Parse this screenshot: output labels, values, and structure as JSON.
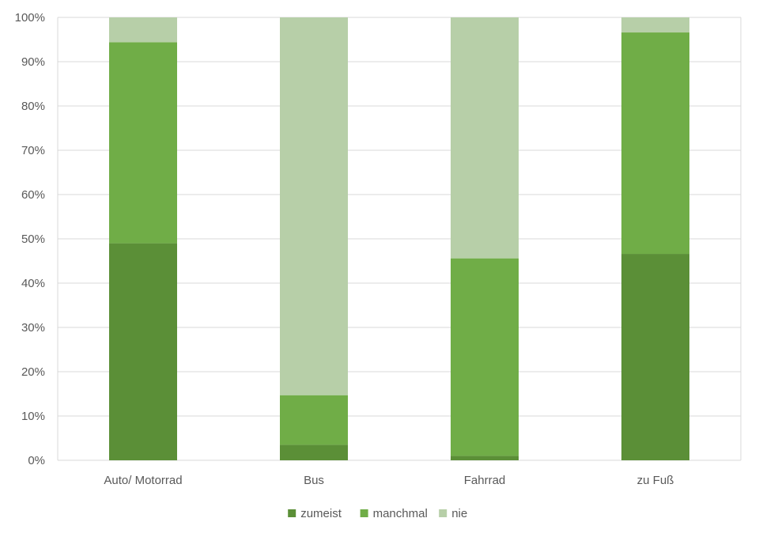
{
  "chart_data": {
    "type": "bar",
    "stacked": true,
    "percent": true,
    "categories": [
      "Auto/ Motorrad",
      "Bus",
      "Fahrrad",
      "zu Fuß"
    ],
    "series": [
      {
        "name": "zumeist",
        "color": "#5b8f37",
        "values": [
          49,
          3.5,
          1,
          46.6
        ]
      },
      {
        "name": "manchmal",
        "color": "#70ad47",
        "values": [
          45.4,
          11.2,
          44.6,
          50
        ]
      },
      {
        "name": "nie",
        "color": "#b7cfa8",
        "values": [
          5.6,
          85.3,
          54.4,
          3.4
        ]
      }
    ],
    "ylim": [
      0,
      100
    ],
    "yticks": [
      "0%",
      "10%",
      "20%",
      "30%",
      "40%",
      "50%",
      "60%",
      "70%",
      "80%",
      "90%",
      "100%"
    ],
    "grid": true,
    "legend": "bottom-center"
  }
}
